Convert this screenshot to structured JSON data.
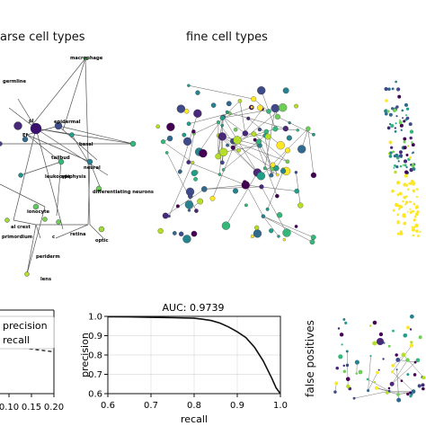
{
  "panels": {
    "coarse_title": "arse cell types",
    "fine_title": "fine cell types",
    "false_positives_label": "false positives"
  },
  "coarse_labels": [
    {
      "text": "macrophage"
    },
    {
      "text": "germline"
    },
    {
      "text": "epidermal"
    },
    {
      "text": "basal"
    },
    {
      "text": "neural"
    },
    {
      "text": "ionocyte"
    },
    {
      "text": "differentiating neurons"
    },
    {
      "text": "leukocyte"
    },
    {
      "text": "epiphysis"
    },
    {
      "text": "retina"
    },
    {
      "text": "optic"
    },
    {
      "text": "periderm"
    },
    {
      "text": "lens"
    },
    {
      "text": "primordium"
    },
    {
      "text": "al crest"
    },
    {
      "text": "tailbud"
    },
    {
      "text": "Ef"
    },
    {
      "text": "pl"
    },
    {
      "text": "c"
    }
  ],
  "chart_data": [
    {
      "type": "line",
      "title": "",
      "xlabel": "",
      "ylabel": "",
      "xlim": [
        0.0,
        0.2
      ],
      "x_ticks": [
        "0.10",
        "0.15",
        "0.20"
      ],
      "legend": [
        "precision",
        "recall"
      ],
      "legend_placement": "top-left",
      "series": [
        {
          "name": "recall",
          "x": [
            0.02,
            0.05,
            0.08,
            0.11,
            0.14,
            0.17,
            0.2
          ],
          "y": [
            0.62,
            0.6,
            0.58,
            0.56,
            0.54,
            0.52,
            0.5
          ]
        }
      ]
    },
    {
      "type": "line",
      "title": "AUC: 0.9739",
      "xlabel": "recall",
      "ylabel": "precision",
      "xlim": [
        0.6,
        1.0
      ],
      "ylim": [
        0.6,
        1.0
      ],
      "x_ticks": [
        "0.6",
        "0.7",
        "0.8",
        "0.9",
        "1.0"
      ],
      "y_ticks": [
        "0.6",
        "0.7",
        "0.8",
        "0.9",
        "1.0"
      ],
      "grid": true,
      "series": [
        {
          "x": [
            0.6,
            0.65,
            0.7,
            0.75,
            0.8,
            0.82,
            0.84,
            0.86,
            0.88,
            0.9,
            0.92,
            0.94,
            0.96,
            0.98,
            0.99,
            1.0
          ],
          "y": [
            0.998,
            0.997,
            0.995,
            0.993,
            0.99,
            0.985,
            0.978,
            0.965,
            0.945,
            0.92,
            0.89,
            0.84,
            0.77,
            0.68,
            0.63,
            0.6
          ]
        }
      ]
    }
  ]
}
